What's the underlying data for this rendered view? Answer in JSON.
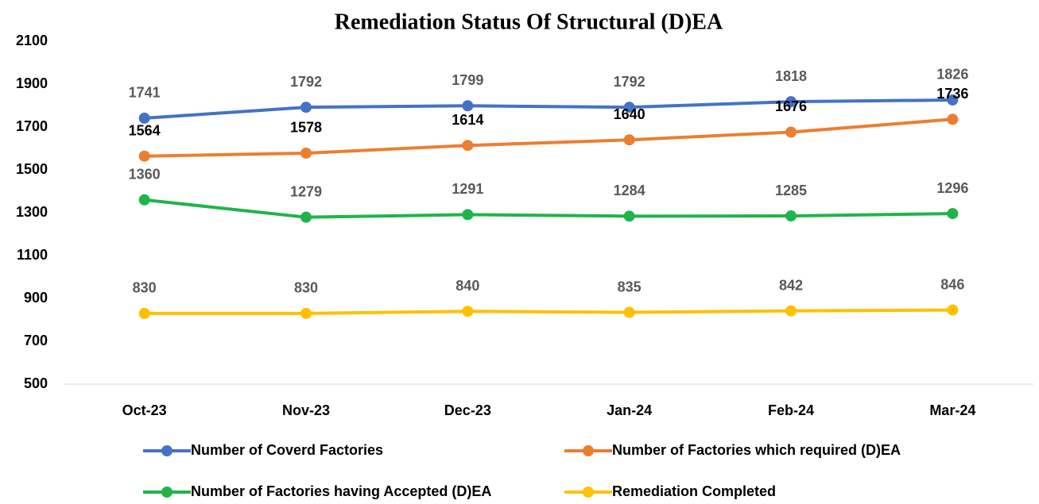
{
  "chart_data": {
    "type": "line",
    "title": "Remediation Status Of Structural (D)EA",
    "categories": [
      "Oct-23",
      "Nov-23",
      "Dec-23",
      "Jan-24",
      "Feb-24",
      "Mar-24"
    ],
    "series": [
      {
        "name": "Number of Coverd Factories",
        "color": "#4472c4",
        "label_color": "#595959",
        "values": [
          1741,
          1792,
          1799,
          1792,
          1818,
          1826
        ]
      },
      {
        "name": "Number of Factories which required (D)EA",
        "color": "#ed7d31",
        "label_color": "#000000",
        "values": [
          1564,
          1578,
          1614,
          1640,
          1676,
          1736
        ]
      },
      {
        "name": "Number of Factories having Accepted (D)EA",
        "color": "#1fb44a",
        "label_color": "#595959",
        "values": [
          1360,
          1279,
          1291,
          1284,
          1285,
          1296
        ]
      },
      {
        "name": "Remediation Completed",
        "color": "#ffc000",
        "label_color": "#595959",
        "values": [
          830,
          830,
          840,
          835,
          842,
          846
        ]
      }
    ],
    "ylim": [
      500,
      2100
    ],
    "yticks": [
      500,
      700,
      900,
      1100,
      1300,
      1500,
      1700,
      1900,
      2100
    ],
    "grid": false
  }
}
